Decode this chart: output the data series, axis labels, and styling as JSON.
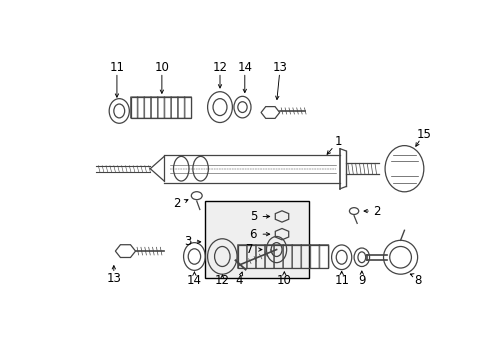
{
  "bg_color": "#ffffff",
  "fig_width": 4.89,
  "fig_height": 3.6,
  "dpi": 100,
  "gray": "#444444",
  "black": "#000000",
  "lightgray": "#e8e8e8",
  "parts": {
    "label_fontsize": 8.5
  }
}
